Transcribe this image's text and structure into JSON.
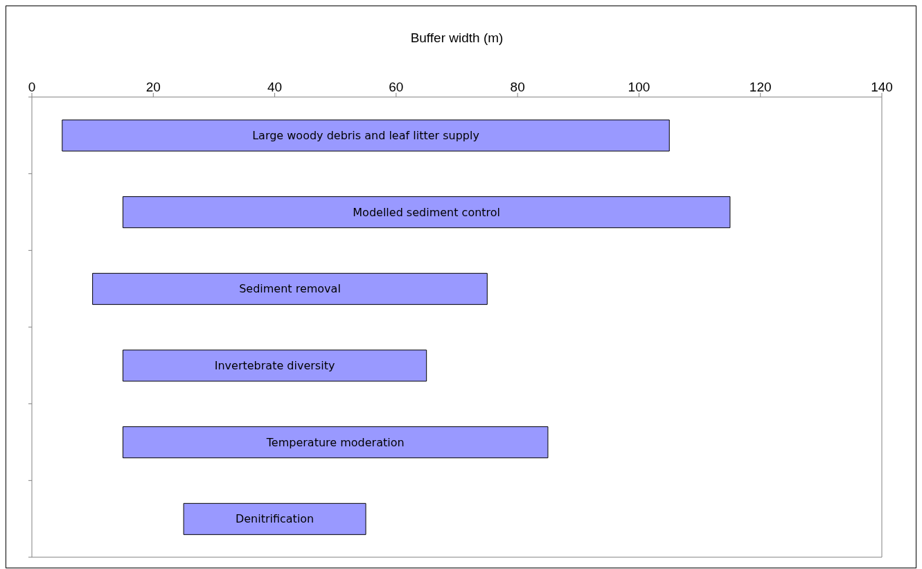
{
  "chart_data": {
    "type": "bar",
    "orientation": "horizontal",
    "xlabel": "Buffer width (m)",
    "categories": [
      "Large woody debris and leaf litter supply",
      "Modelled sediment control",
      "Sediment removal",
      "Invertebrate diversity",
      "Temperature moderation",
      "Denitrification"
    ],
    "base": [
      5,
      15,
      10,
      15,
      15,
      25
    ],
    "values": [
      100,
      100,
      65,
      50,
      70,
      30
    ],
    "color": "#9999ff",
    "xlim": [
      0,
      140
    ],
    "xticks": [
      0,
      20,
      40,
      60,
      80,
      100,
      120,
      140
    ],
    "grid": false
  }
}
